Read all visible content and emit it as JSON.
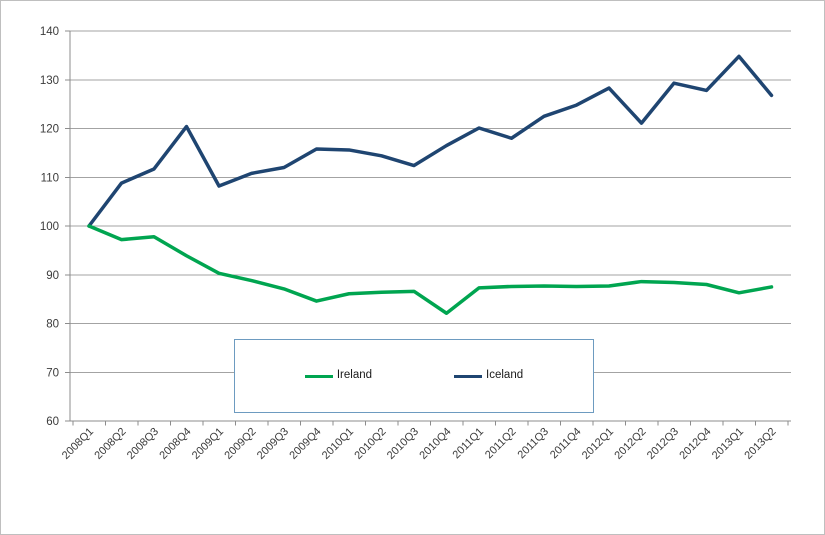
{
  "window": {
    "background": "#ffffff",
    "border_color": "#bfbfbf"
  },
  "chart_data": {
    "type": "line",
    "categories": [
      "2008Q1",
      "2008Q2",
      "2008Q3",
      "2008Q4",
      "2009Q1",
      "2009Q2",
      "2009Q3",
      "2009Q4",
      "2010Q1",
      "2010Q2",
      "2010Q3",
      "2010Q4",
      "2011Q1",
      "2011Q2",
      "2011Q3",
      "2011Q4",
      "2012Q1",
      "2012Q2",
      "2012Q3",
      "2012Q4",
      "2013Q1",
      "2013Q2"
    ],
    "series": [
      {
        "name": "Ireland",
        "color": "#00a550",
        "values": [
          100,
          97.2,
          97.8,
          93.9,
          90.3,
          88.8,
          87.1,
          84.6,
          86.1,
          86.4,
          86.6,
          82.1,
          87.3,
          87.6,
          87.7,
          87.6,
          87.7,
          88.6,
          88.4,
          88.0,
          86.3,
          87.5
        ]
      },
      {
        "name": "Iceland",
        "color": "#1f4571",
        "values": [
          100,
          108.8,
          111.7,
          120.4,
          108.2,
          110.8,
          112.0,
          115.8,
          115.6,
          114.4,
          112.4,
          116.5,
          120.1,
          118.0,
          122.5,
          124.8,
          128.3,
          121.1,
          129.3,
          127.8,
          134.8,
          126.8
        ]
      }
    ],
    "ylim": [
      60,
      140
    ],
    "y_ticks": [
      60,
      70,
      80,
      90,
      100,
      110,
      120,
      130,
      140
    ],
    "grid": true,
    "legend_position": "inside-bottom-center-box",
    "legend_border_color": "#6d9bc0",
    "gridline_color": "#a3a3a3",
    "axis_color": "#8c8c8c",
    "tick_label_color": "#3b3b3b"
  }
}
